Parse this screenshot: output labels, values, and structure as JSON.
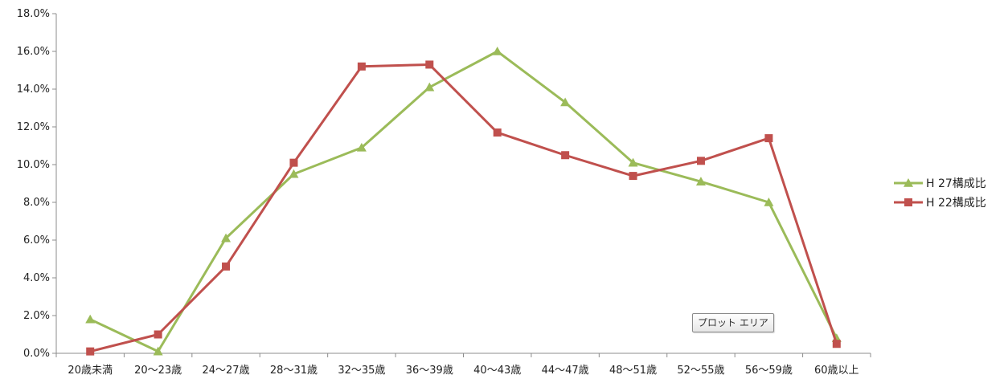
{
  "chart_data": {
    "type": "line",
    "categories": [
      "20歳未満",
      "20〜23歳",
      "24〜27歳",
      "28〜31歳",
      "32〜35歳",
      "36〜39歳",
      "40〜43歳",
      "44〜47歳",
      "48〜51歳",
      "52〜55歳",
      "56〜59歳",
      "60歳以上"
    ],
    "series": [
      {
        "name": "H 27構成比",
        "color": "#9bbb59",
        "marker": "triangle",
        "values": [
          1.8,
          0.1,
          6.1,
          9.5,
          10.9,
          14.1,
          16.0,
          13.3,
          10.1,
          9.1,
          8.0,
          0.8
        ]
      },
      {
        "name": "H 22構成比",
        "color": "#c0504d",
        "marker": "square",
        "values": [
          0.1,
          1.0,
          4.6,
          10.1,
          15.2,
          15.3,
          11.7,
          10.5,
          9.4,
          10.2,
          11.4,
          0.5
        ]
      }
    ],
    "y_tick_labels": [
      "0.0%",
      "2.0%",
      "4.0%",
      "6.0%",
      "8.0%",
      "10.0%",
      "12.0%",
      "14.0%",
      "16.0%",
      "18.0%"
    ],
    "ylim": [
      0,
      18
    ],
    "y_unit": "%",
    "grid": false,
    "legend_position": "right"
  },
  "tooltip": {
    "text": "プロット エリア"
  }
}
